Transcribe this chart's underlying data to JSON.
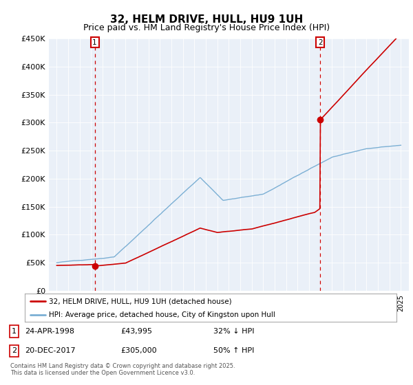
{
  "title": "32, HELM DRIVE, HULL, HU9 1UH",
  "subtitle": "Price paid vs. HM Land Registry's House Price Index (HPI)",
  "title_fontsize": 11,
  "subtitle_fontsize": 9,
  "ylim": [
    0,
    450000
  ],
  "yticks": [
    0,
    50000,
    100000,
    150000,
    200000,
    250000,
    300000,
    350000,
    400000,
    450000
  ],
  "ytick_labels": [
    "£0",
    "£50K",
    "£100K",
    "£150K",
    "£200K",
    "£250K",
    "£300K",
    "£350K",
    "£400K",
    "£450K"
  ],
  "sale1_date": "24-APR-1998",
  "sale1_price": 43995,
  "sale1_x": 1998.31,
  "sale1_hpi": "32% ↓ HPI",
  "sale2_date": "20-DEC-2017",
  "sale2_price": 305000,
  "sale2_x": 2017.97,
  "sale2_hpi": "50% ↑ HPI",
  "legend_line1": "32, HELM DRIVE, HULL, HU9 1UH (detached house)",
  "legend_line2": "HPI: Average price, detached house, City of Kingston upon Hull",
  "footnote": "Contains HM Land Registry data © Crown copyright and database right 2025.\nThis data is licensed under the Open Government Licence v3.0.",
  "price_color": "#cc0000",
  "hpi_color": "#7bafd4",
  "chart_bg": "#eaf0f8",
  "grid_color": "#ffffff",
  "fig_bg": "#ffffff"
}
